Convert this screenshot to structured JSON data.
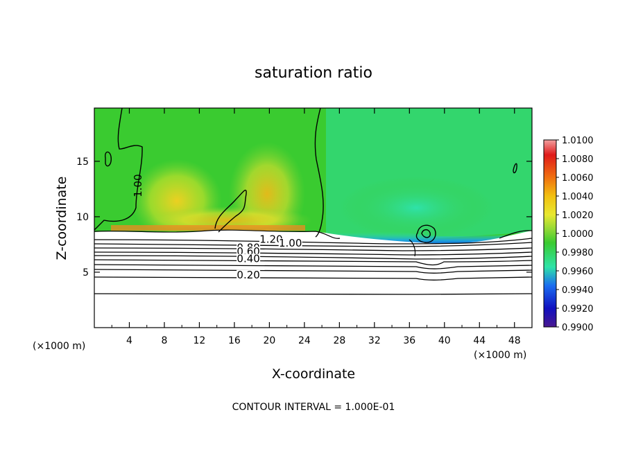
{
  "chart_data": {
    "type": "heatmap",
    "title": "saturation ratio",
    "xlabel": "X-coordinate",
    "ylabel": "Z-coordinate",
    "x_unit": "(×1000 m)",
    "y_unit": "(×1000 m)",
    "x_ticks": [
      4,
      8,
      12,
      16,
      20,
      24,
      28,
      32,
      36,
      40,
      44,
      48
    ],
    "y_ticks": [
      5,
      10,
      15
    ],
    "xlim": [
      0,
      50
    ],
    "ylim": [
      0,
      19.8
    ],
    "colorbar": {
      "ticks": [
        "1.0100",
        "1.0080",
        "1.0060",
        "1.0040",
        "1.0020",
        "1.0000",
        "0.9980",
        "0.9960",
        "0.9940",
        "0.9920",
        "0.9900"
      ],
      "range": [
        0.99,
        1.01
      ],
      "colors": [
        "#f2a0a0",
        "#e01a1a",
        "#f07010",
        "#f2c010",
        "#e8e830",
        "#8fd836",
        "#3acb30",
        "#2ee3a8",
        "#1a6cf0",
        "#1010c0",
        "#4a1890"
      ]
    },
    "contour_labels": [
      {
        "text": "1.00",
        "x": 5.4,
        "z": 12.8
      },
      {
        "text": "1.20",
        "x": 20.2,
        "z": 7.65
      },
      {
        "text": "1.00",
        "x": 22.4,
        "z": 7.3
      },
      {
        "text": "0.80",
        "x": 17.6,
        "z": 6.9
      },
      {
        "text": "0.60",
        "x": 17.6,
        "z": 6.55
      },
      {
        "text": "0.40",
        "x": 17.6,
        "z": 5.9
      },
      {
        "text": "0.20",
        "x": 17.6,
        "z": 4.45
      }
    ],
    "contour_interval_text": "CONTOUR INTERVAL = 1.000E-01",
    "grid": false,
    "legend": "colorbar-right"
  }
}
